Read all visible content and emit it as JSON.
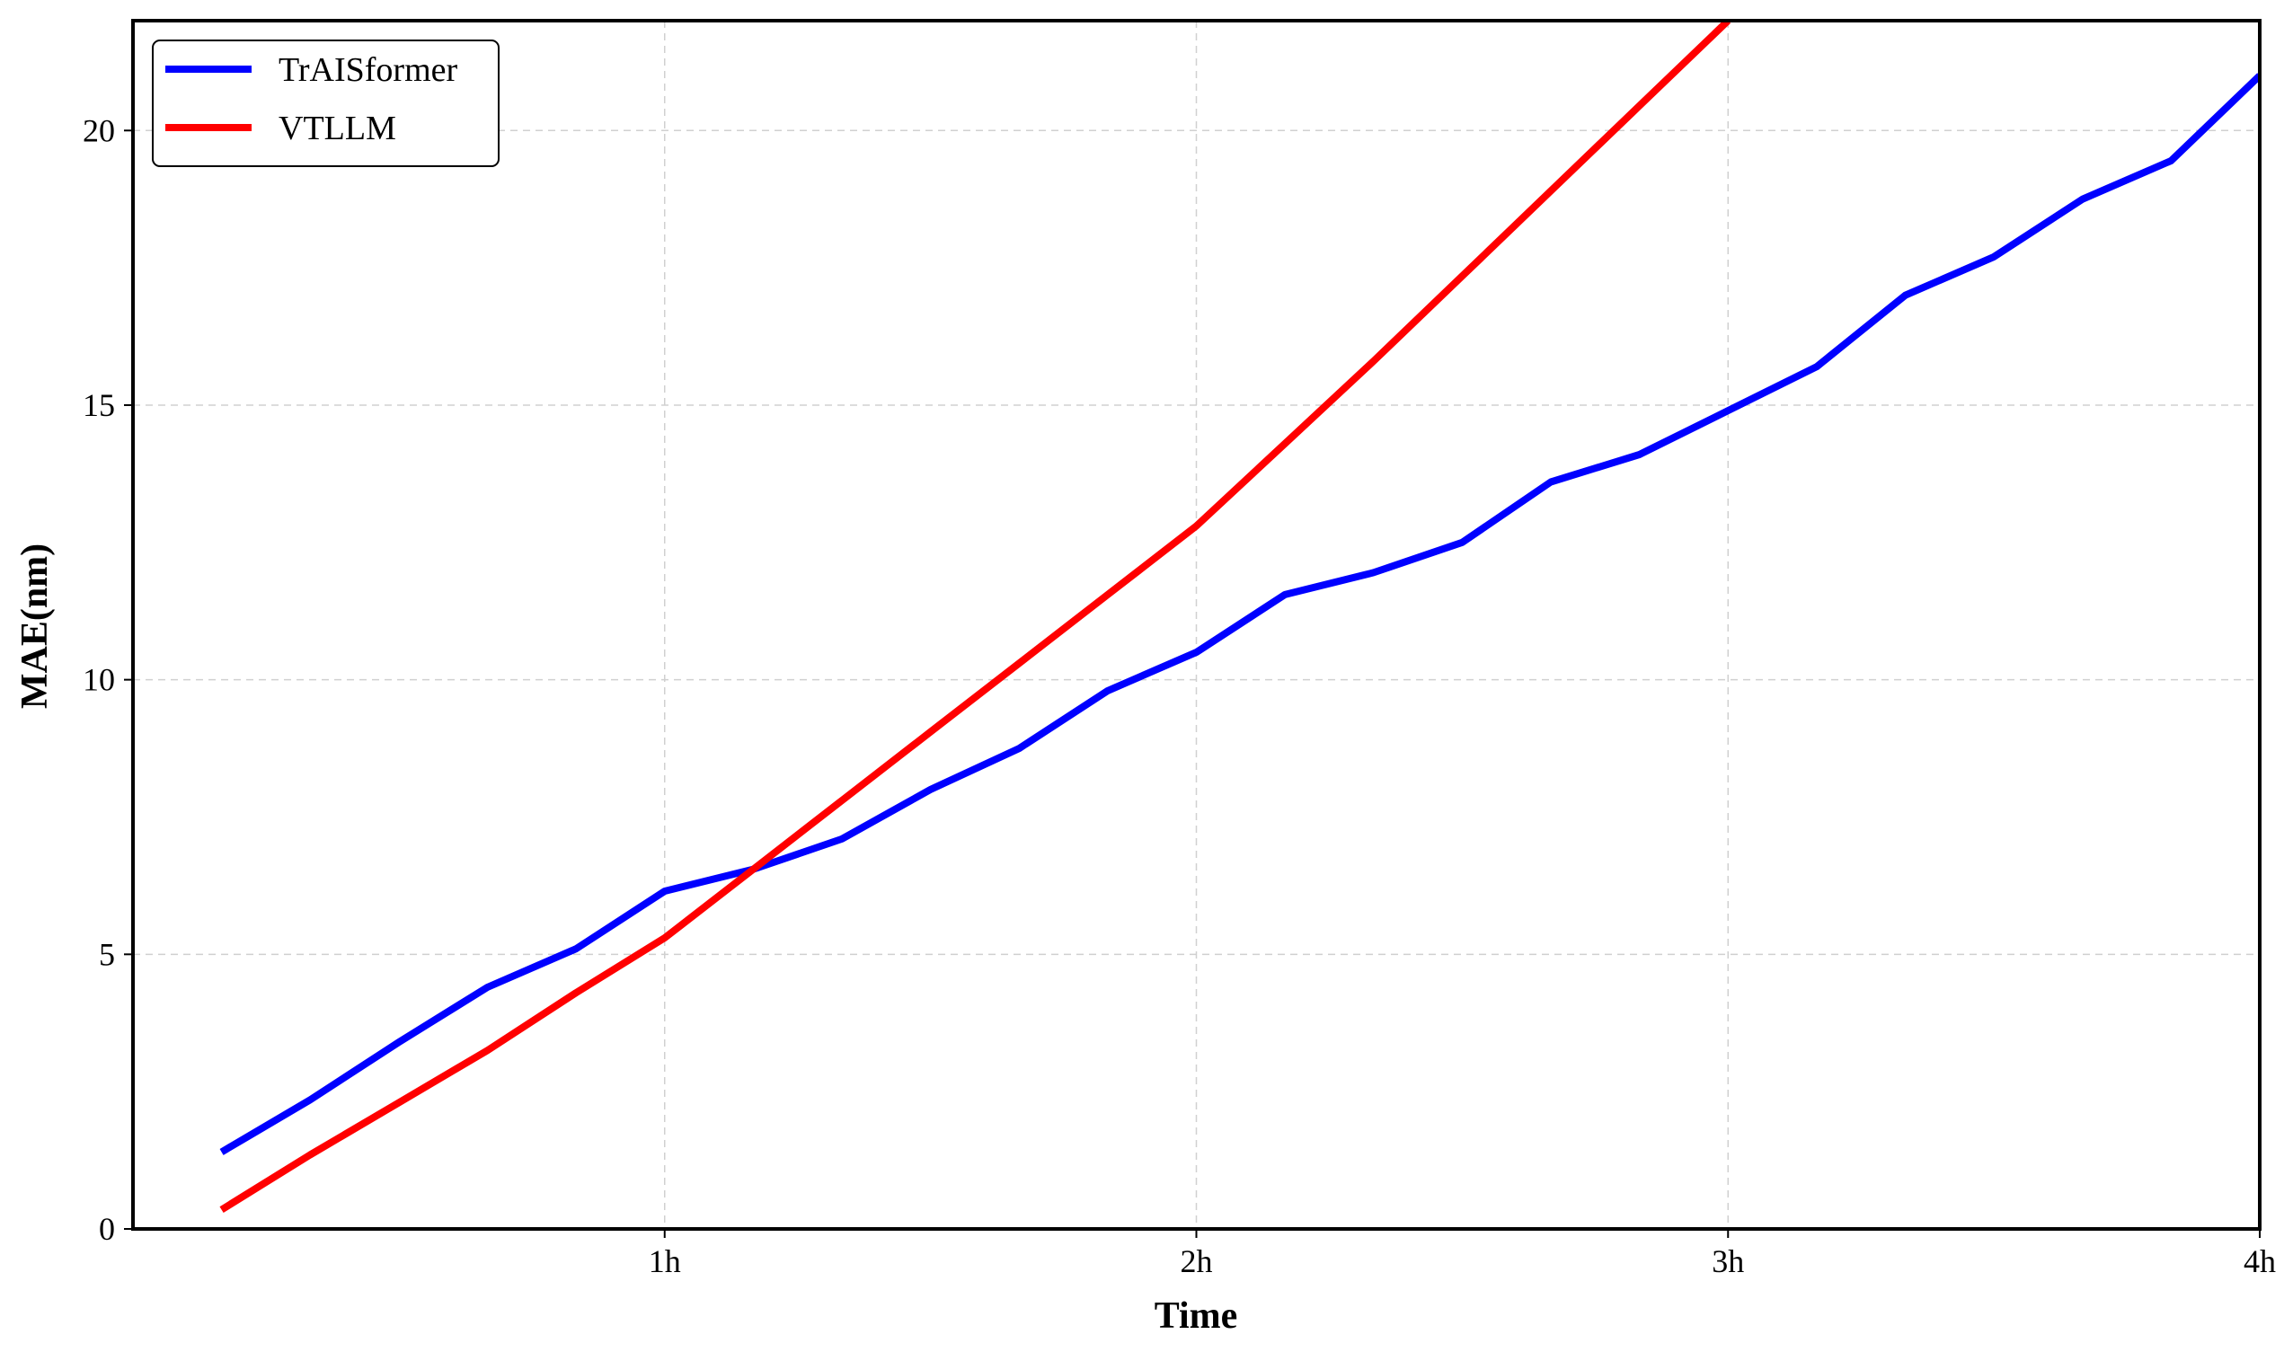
{
  "chart_data": {
    "type": "line",
    "title": "",
    "xlabel": "Time",
    "ylabel": "MAE(nm)",
    "xlim": [
      0,
      4
    ],
    "ylim": [
      0,
      22
    ],
    "x_ticks": [
      {
        "value": 1,
        "label": "1h"
      },
      {
        "value": 2,
        "label": "2h"
      },
      {
        "value": 3,
        "label": "3h"
      },
      {
        "value": 4,
        "label": "4h"
      }
    ],
    "y_ticks": [
      {
        "value": 0,
        "label": "0"
      },
      {
        "value": 5,
        "label": "5"
      },
      {
        "value": 10,
        "label": "10"
      },
      {
        "value": 15,
        "label": "15"
      },
      {
        "value": 20,
        "label": "20"
      }
    ],
    "grid": true,
    "legend_position": "top-left",
    "series": [
      {
        "name": "TrAISformer",
        "color": "#0000ff",
        "x": [
          0.1667,
          0.3333,
          0.5,
          0.6667,
          0.8333,
          1.0,
          1.1667,
          1.3333,
          1.5,
          1.6667,
          1.8333,
          2.0,
          2.1667,
          2.3333,
          2.5,
          2.6667,
          2.8333,
          3.0,
          3.1667,
          3.3333,
          3.5,
          3.6667,
          3.8333,
          4.0
        ],
        "values": [
          1.4,
          2.35,
          3.4,
          4.4,
          5.1,
          6.15,
          6.55,
          7.1,
          8.0,
          8.75,
          9.8,
          10.5,
          11.55,
          11.95,
          12.5,
          13.6,
          14.1,
          14.9,
          15.7,
          17.0,
          17.7,
          18.75,
          19.45,
          21.0
        ]
      },
      {
        "name": "VTLLM",
        "color": "#ff0000",
        "x": [
          0.1667,
          0.3333,
          0.5,
          0.6667,
          0.8333,
          1.0,
          1.1667,
          1.3333,
          1.5,
          1.6667,
          1.8333,
          2.0,
          2.1667,
          2.3333,
          2.5,
          2.6667,
          2.8333,
          3.0
        ],
        "values": [
          0.35,
          1.35,
          2.3,
          3.25,
          4.3,
          5.3,
          6.55,
          7.8,
          9.05,
          10.3,
          11.55,
          12.8,
          14.3,
          15.8,
          17.35,
          18.9,
          20.45,
          22.0
        ]
      }
    ]
  }
}
